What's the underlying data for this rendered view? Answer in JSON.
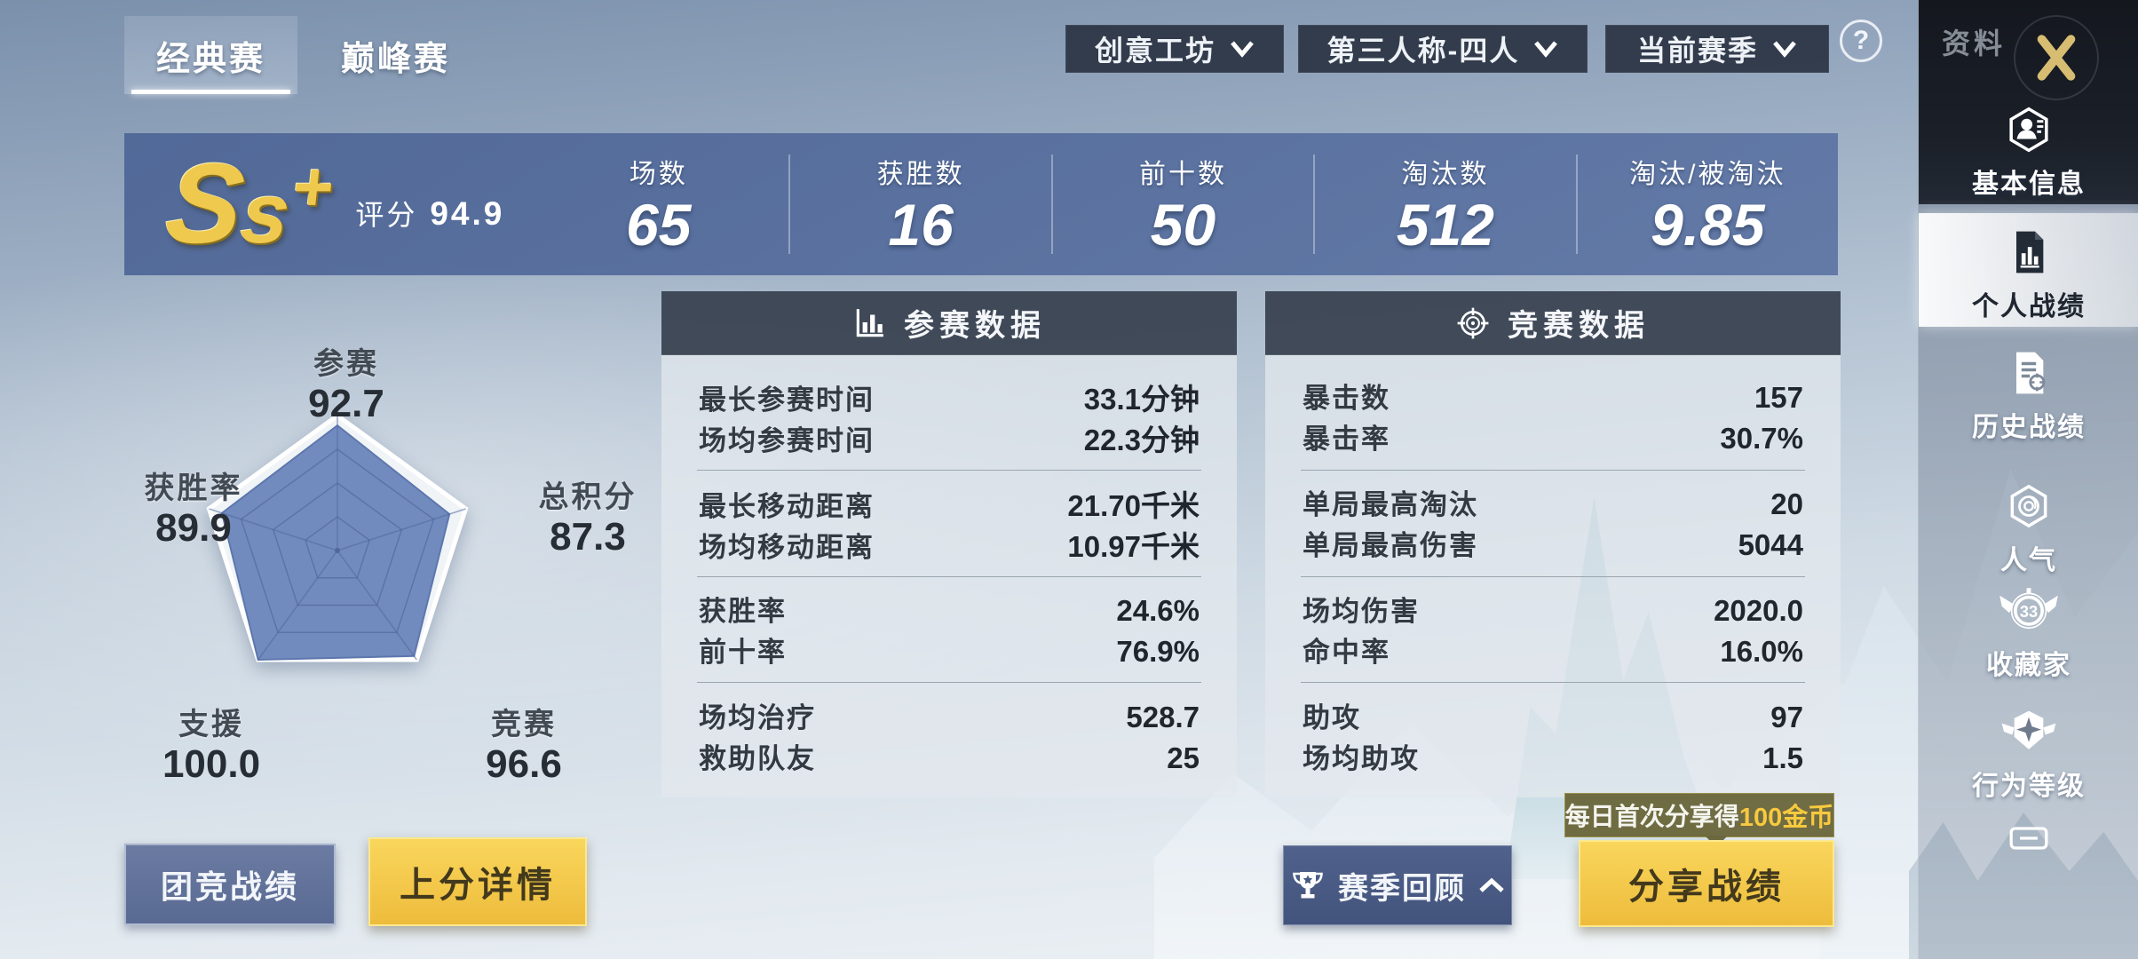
{
  "tabs": [
    {
      "label": "经典赛",
      "active": true
    },
    {
      "label": "巅峰赛",
      "active": false
    }
  ],
  "filters": [
    {
      "label": "创意工坊"
    },
    {
      "label": "第三人称-四人"
    },
    {
      "label": "当前赛季"
    }
  ],
  "help": {
    "label": "?"
  },
  "rating": {
    "grade_s": "S",
    "grade_s2": "s",
    "grade_plus": "+",
    "score_label": "评分",
    "score": "94.9"
  },
  "summary": [
    {
      "label": "场数",
      "value": "65"
    },
    {
      "label": "获胜数",
      "value": "16"
    },
    {
      "label": "前十数",
      "value": "50"
    },
    {
      "label": "淘汰数",
      "value": "512"
    },
    {
      "label": "淘汰/被淘汰",
      "value": "9.85"
    }
  ],
  "chart_data": {
    "type": "radar",
    "categories": [
      "参赛",
      "总积分",
      "竞赛",
      "支援",
      "获胜率"
    ],
    "values": [
      92.7,
      87.3,
      96.6,
      100.0,
      89.9
    ],
    "value_labels": [
      "92.7",
      "87.3",
      "96.6",
      "100.0",
      "89.9"
    ],
    "max": 100,
    "rings": [
      0.25,
      0.5,
      0.75,
      1.0
    ],
    "fill_color": "#6882b9",
    "outer_color": "#f0f4f7"
  },
  "panels": [
    {
      "title": "参赛数据",
      "icon": "bar-chart",
      "rows": [
        {
          "label": "最长参赛时间",
          "value": "33.1分钟"
        },
        {
          "label": "场均参赛时间",
          "value": "22.3分钟"
        },
        {
          "label": "最长移动距离",
          "value": "21.70千米"
        },
        {
          "label": "场均移动距离",
          "value": "10.97千米"
        },
        {
          "label": "获胜率",
          "value": "24.6%"
        },
        {
          "label": "前十率",
          "value": "76.9%"
        },
        {
          "label": "场均治疗",
          "value": "528.7"
        },
        {
          "label": "救助队友",
          "value": "25"
        }
      ]
    },
    {
      "title": "竞赛数据",
      "icon": "target",
      "rows": [
        {
          "label": "暴击数",
          "value": "157"
        },
        {
          "label": "暴击率",
          "value": "30.7%"
        },
        {
          "label": "单局最高淘汰",
          "value": "20"
        },
        {
          "label": "单局最高伤害",
          "value": "5044"
        },
        {
          "label": "场均伤害",
          "value": "2020.0"
        },
        {
          "label": "命中率",
          "value": "16.0%"
        },
        {
          "label": "助攻",
          "value": "97"
        },
        {
          "label": "场均助攻",
          "value": "1.5"
        }
      ]
    }
  ],
  "footer": {
    "team": "团竞战绩",
    "rank": "上分详情",
    "season": "赛季回顾",
    "share": "分享战绩",
    "tooltip_text": "每日首次分享得",
    "tooltip_highlight": "100金币"
  },
  "sidebar": {
    "title": "资料",
    "items": [
      {
        "label": "基本信息",
        "active": false
      },
      {
        "label": "个人战绩",
        "active": true
      },
      {
        "label": "历史战绩",
        "active": false
      },
      {
        "label": "人气",
        "active": false
      },
      {
        "label": "收藏家",
        "active": false,
        "badge": "33"
      },
      {
        "label": "行为等级",
        "active": false
      }
    ]
  },
  "colors": {
    "band_blue": "#56699b",
    "accent_yellow": "#f3c846",
    "panel_header": "#38424f",
    "tooltip_olive": "#686437",
    "gold_x": "#d7bd72"
  }
}
